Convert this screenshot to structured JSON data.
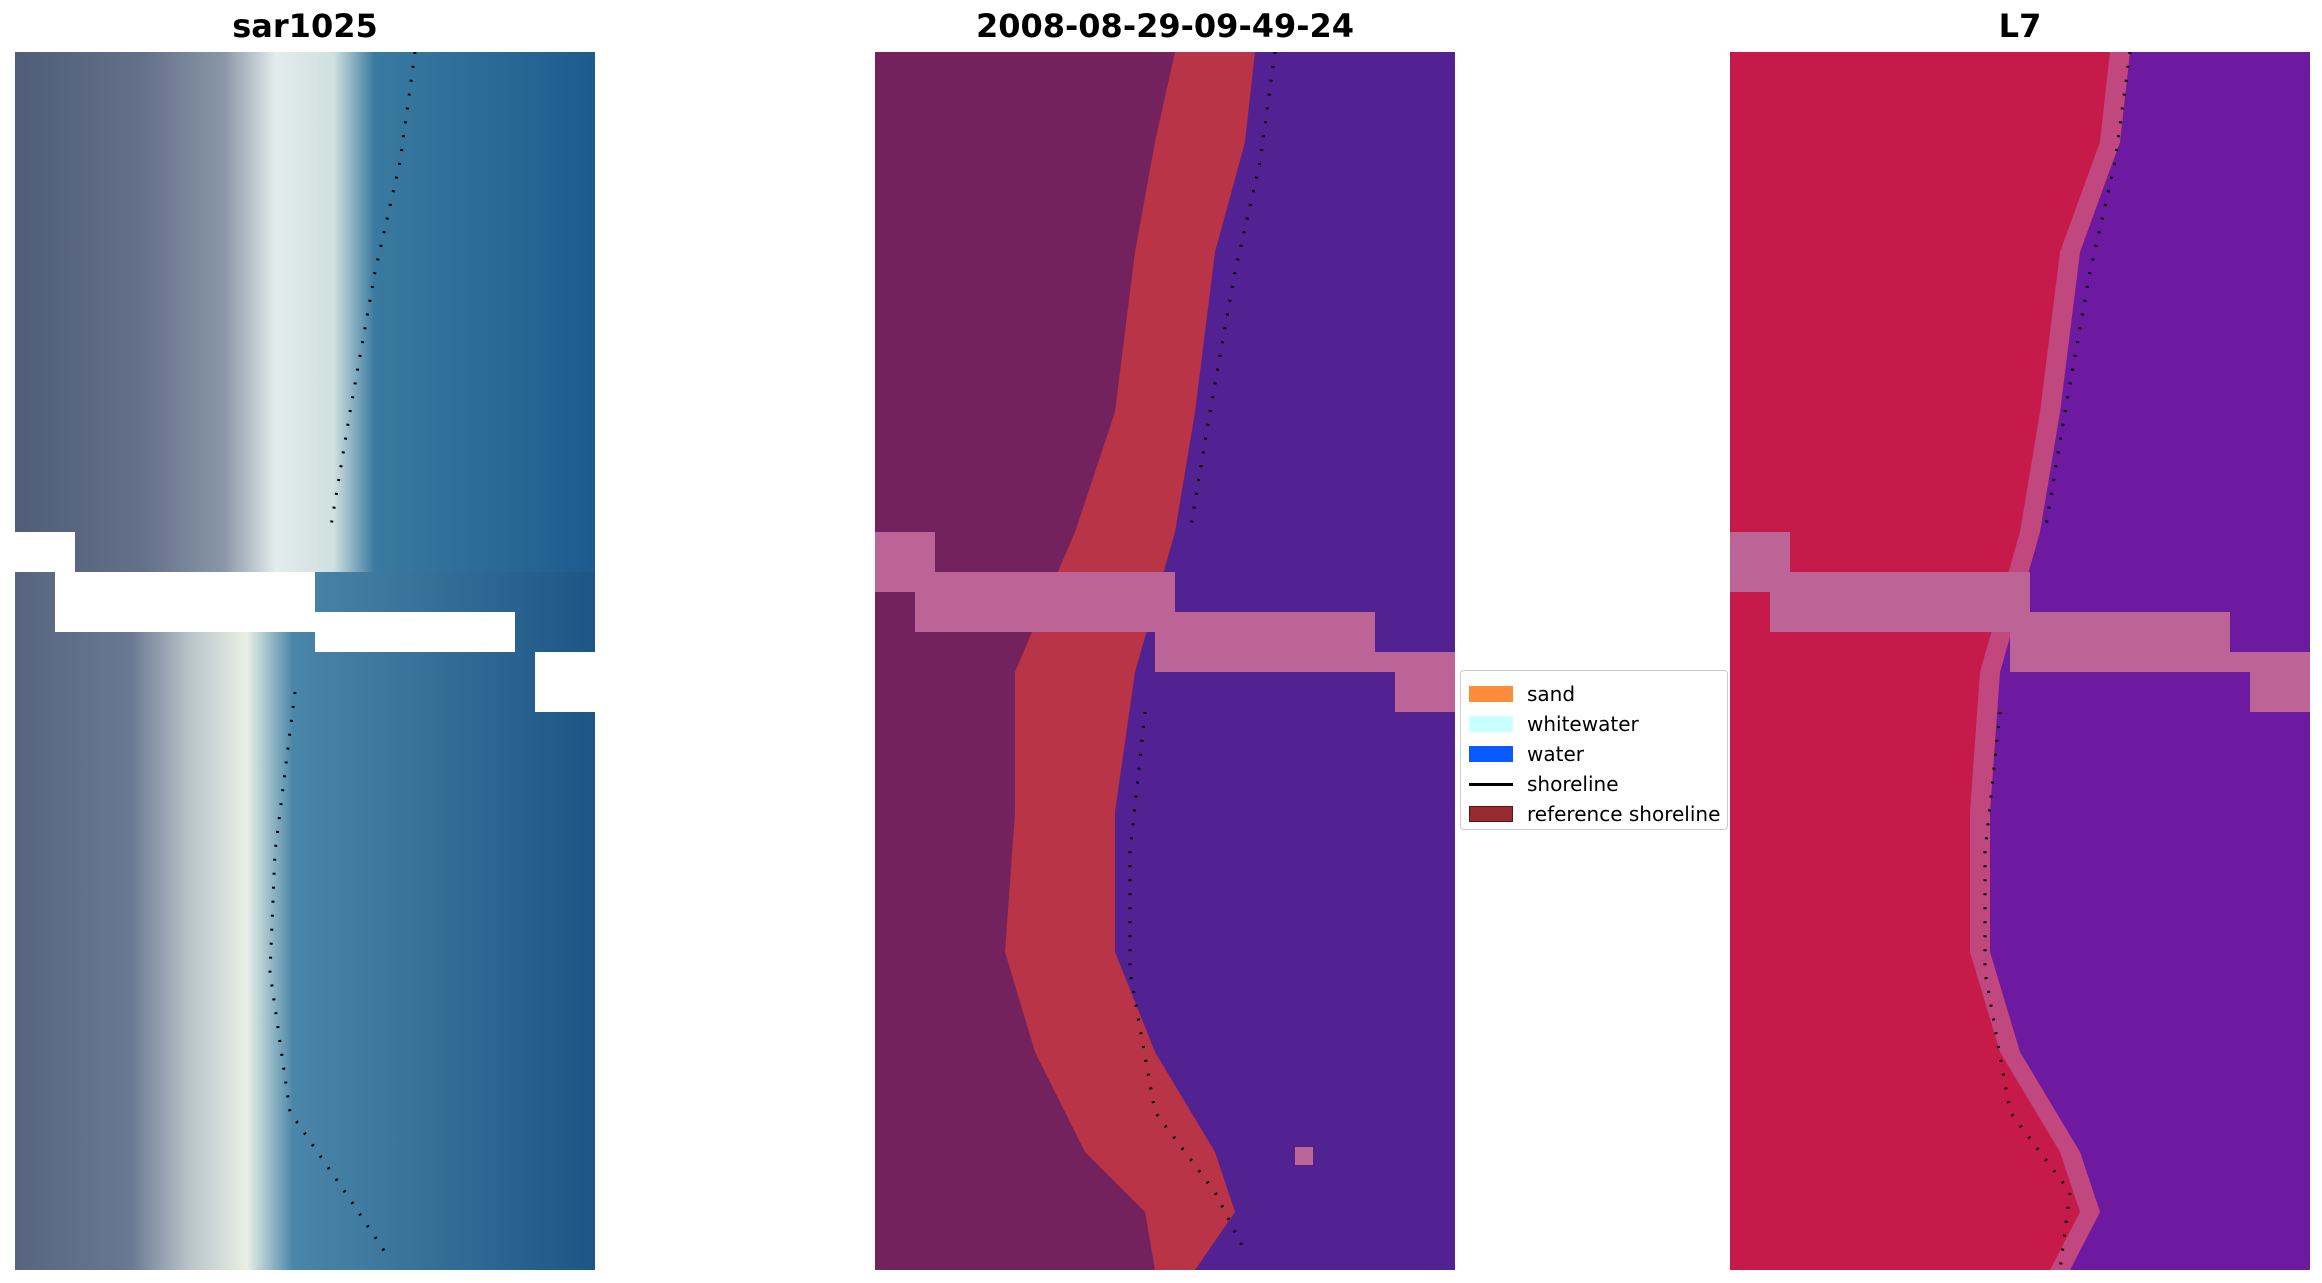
{
  "panels": [
    {
      "title": "sar1025"
    },
    {
      "title": "2008-08-29-09-49-24"
    },
    {
      "title": "L7"
    }
  ],
  "legend": {
    "items": [
      {
        "label": "sand",
        "color": "#ff8c3a",
        "kind": "patch"
      },
      {
        "label": "whitewater",
        "color": "#c8ffff",
        "kind": "patch"
      },
      {
        "label": "water",
        "color": "#0a5bff",
        "kind": "patch"
      },
      {
        "label": "shoreline",
        "color": "#000000",
        "kind": "line"
      },
      {
        "label": "reference shoreline",
        "color": "#962a2e",
        "kind": "patch"
      }
    ]
  },
  "colors": {
    "rgb_land": "#5a6a84",
    "rgb_water": "#24679a",
    "rgb_beach": "#e8eef0",
    "class_land": "#74225e",
    "class_sand": "#b93446",
    "class_water": "#522293",
    "class_nodata": "#bb6495",
    "index_land": "#c61a4b",
    "index_water": "#6e1aa0",
    "index_nodata": "#bb6495",
    "shoreline_dots": "#000000"
  }
}
